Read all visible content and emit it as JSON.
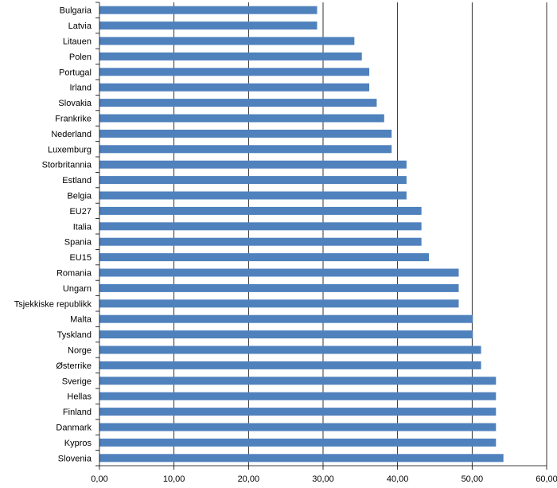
{
  "chart_data": {
    "type": "bar",
    "orientation": "horizontal",
    "title": "",
    "xlabel": "",
    "ylabel": "",
    "xlim": [
      0,
      60
    ],
    "x_ticks": [
      "0,00",
      "10,00",
      "20,00",
      "30,00",
      "40,00",
      "50,00",
      "60,00"
    ],
    "grid": "vertical",
    "legend": "none",
    "bar_color": "#4f81bd",
    "categories": [
      "Bulgaria",
      "Latvia",
      "Litauen",
      "Polen",
      "Portugal",
      "Irland",
      "Slovakia",
      "Frankrike",
      "Nederland",
      "Luxemburg",
      "Storbritannia",
      "Estland",
      "Belgia",
      "EU27",
      "Italia",
      "Spania",
      "EU15",
      "Romania",
      "Ungarn",
      "Tsjekkiske republikk",
      "Malta",
      "Tyskland",
      "Norge",
      "Østerrike",
      "Sverige",
      "Hellas",
      "Finland",
      "Danmark",
      "Kypros",
      "Slovenia"
    ],
    "values": [
      29.2,
      29.2,
      34.2,
      35.2,
      36.2,
      36.2,
      37.2,
      38.2,
      39.2,
      39.2,
      41.2,
      41.2,
      41.2,
      43.2,
      43.2,
      43.2,
      44.2,
      48.2,
      48.2,
      48.2,
      50.1,
      50.1,
      51.2,
      51.2,
      53.2,
      53.2,
      53.2,
      53.2,
      53.2,
      54.2
    ]
  }
}
